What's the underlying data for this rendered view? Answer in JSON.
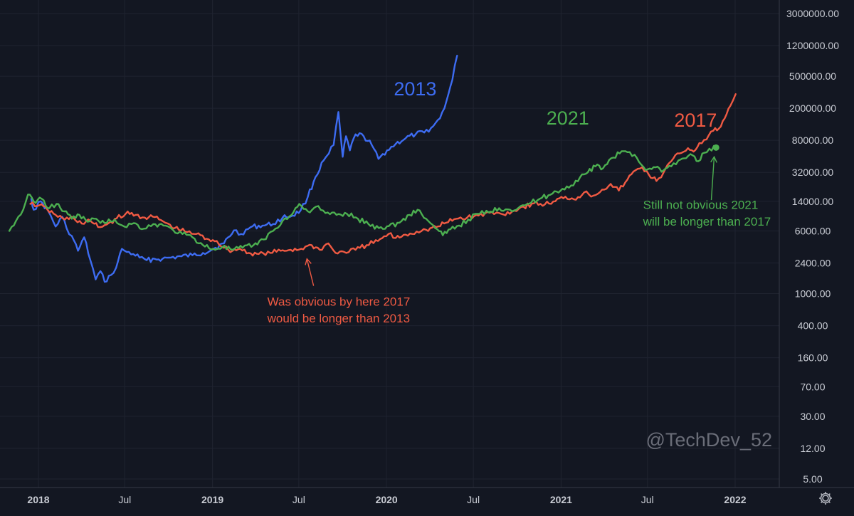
{
  "chart_data": {
    "type": "line",
    "title": "",
    "xlabel": "",
    "ylabel": "",
    "y_scale": "log",
    "ylim": [
      4,
      3500000
    ],
    "xlim": [
      "2017-11-01",
      "2022-03-15"
    ],
    "grid": true,
    "y_ticks": [
      3000000,
      1200000,
      500000,
      200000,
      80000,
      32000,
      14000,
      6000,
      2400,
      1000,
      400,
      160,
      70,
      30,
      12,
      5
    ],
    "y_tick_labels": [
      "3000000.00",
      "1200000.00",
      "500000.00",
      "200000.00",
      "80000.00",
      "32000.00",
      "14000.00",
      "6000.00",
      "2400.00",
      "1000.00",
      "400.00",
      "160.00",
      "70.00",
      "30.00",
      "12.00",
      "5.00"
    ],
    "x_ticks": [
      {
        "date": "2018-01-01",
        "label": "2018",
        "major": true
      },
      {
        "date": "2018-07-01",
        "label": "Jul",
        "major": false
      },
      {
        "date": "2019-01-01",
        "label": "2019",
        "major": true
      },
      {
        "date": "2019-07-01",
        "label": "Jul",
        "major": false
      },
      {
        "date": "2020-01-01",
        "label": "2020",
        "major": true
      },
      {
        "date": "2020-07-01",
        "label": "Jul",
        "major": false
      },
      {
        "date": "2021-01-01",
        "label": "2021",
        "major": true
      },
      {
        "date": "2021-07-01",
        "label": "Jul",
        "major": false
      },
      {
        "date": "2022-01-01",
        "label": "2022",
        "major": true
      }
    ],
    "series": [
      {
        "name": "2013",
        "color": "#3d6cf2",
        "label_date": "2020-03-01",
        "label_value": 290000,
        "points": [
          [
            "2017-12-17",
            15000
          ],
          [
            "2017-12-22",
            11000
          ],
          [
            "2018-01-06",
            14000
          ],
          [
            "2018-01-22",
            10500
          ],
          [
            "2018-02-06",
            6800
          ],
          [
            "2018-02-20",
            9000
          ],
          [
            "2018-03-01",
            6500
          ],
          [
            "2018-03-12",
            5200
          ],
          [
            "2018-03-25",
            3400
          ],
          [
            "2018-04-07",
            5000
          ],
          [
            "2018-04-20",
            2600
          ],
          [
            "2018-05-01",
            1500
          ],
          [
            "2018-05-11",
            1900
          ],
          [
            "2018-05-20",
            1400
          ],
          [
            "2018-06-02",
            1700
          ],
          [
            "2018-06-13",
            2100
          ],
          [
            "2018-06-25",
            3600
          ],
          [
            "2018-07-05",
            3300
          ],
          [
            "2018-07-19",
            3100
          ],
          [
            "2018-08-01",
            2800
          ],
          [
            "2018-08-16",
            2600
          ],
          [
            "2018-09-02",
            2700
          ],
          [
            "2018-09-18",
            2700
          ],
          [
            "2018-10-06",
            2800
          ],
          [
            "2018-10-28",
            2900
          ],
          [
            "2018-11-20",
            3000
          ],
          [
            "2018-12-12",
            3200
          ],
          [
            "2019-01-03",
            3600
          ],
          [
            "2019-01-25",
            4200
          ],
          [
            "2019-02-15",
            6100
          ],
          [
            "2019-03-02",
            5500
          ],
          [
            "2019-03-22",
            6700
          ],
          [
            "2019-04-16",
            7000
          ],
          [
            "2019-05-08",
            7300
          ],
          [
            "2019-05-28",
            8800
          ],
          [
            "2019-06-18",
            9300
          ],
          [
            "2019-07-05",
            10800
          ],
          [
            "2019-07-20",
            16000
          ],
          [
            "2019-08-05",
            28000
          ],
          [
            "2019-08-22",
            45000
          ],
          [
            "2019-09-02",
            55000
          ],
          [
            "2019-09-12",
            70000
          ],
          [
            "2019-09-22",
            180000
          ],
          [
            "2019-10-01",
            50000
          ],
          [
            "2019-10-08",
            90000
          ],
          [
            "2019-10-16",
            60000
          ],
          [
            "2019-10-28",
            95000
          ],
          [
            "2019-11-14",
            90000
          ],
          [
            "2019-12-01",
            70000
          ],
          [
            "2019-12-15",
            47000
          ],
          [
            "2020-01-02",
            60000
          ],
          [
            "2020-01-20",
            72000
          ],
          [
            "2020-02-10",
            85000
          ],
          [
            "2020-03-02",
            95000
          ],
          [
            "2020-03-20",
            100000
          ],
          [
            "2020-04-08",
            120000
          ],
          [
            "2020-04-22",
            150000
          ],
          [
            "2020-05-06",
            250000
          ],
          [
            "2020-05-18",
            450000
          ],
          [
            "2020-05-28",
            900000
          ]
        ]
      },
      {
        "name": "2017",
        "color": "#f05a43",
        "label_date": "2021-10-10",
        "label_value": 118000,
        "points": [
          [
            "2017-12-15",
            13000
          ],
          [
            "2018-01-03",
            12500
          ],
          [
            "2018-01-20",
            11000
          ],
          [
            "2018-02-06",
            9500
          ],
          [
            "2018-02-25",
            8300
          ],
          [
            "2018-03-15",
            8800
          ],
          [
            "2018-04-02",
            7400
          ],
          [
            "2018-04-20",
            8000
          ],
          [
            "2018-05-06",
            6700
          ],
          [
            "2018-05-24",
            7200
          ],
          [
            "2018-06-14",
            8600
          ],
          [
            "2018-07-03",
            9800
          ],
          [
            "2018-07-24",
            9500
          ],
          [
            "2018-08-12",
            8800
          ],
          [
            "2018-09-02",
            8900
          ],
          [
            "2018-09-24",
            7600
          ],
          [
            "2018-10-14",
            6500
          ],
          [
            "2018-11-04",
            5900
          ],
          [
            "2018-11-28",
            5500
          ],
          [
            "2018-12-20",
            4800
          ],
          [
            "2019-01-10",
            4500
          ],
          [
            "2019-01-25",
            3700
          ],
          [
            "2019-02-12",
            3400
          ],
          [
            "2019-02-28",
            3600
          ],
          [
            "2019-03-18",
            3200
          ],
          [
            "2019-04-08",
            3100
          ],
          [
            "2019-05-02",
            3200
          ],
          [
            "2019-05-24",
            3400
          ],
          [
            "2019-06-14",
            3500
          ],
          [
            "2019-07-06",
            3600
          ],
          [
            "2019-07-28",
            4000
          ],
          [
            "2019-08-14",
            3500
          ],
          [
            "2019-09-01",
            4200
          ],
          [
            "2019-09-16",
            3200
          ],
          [
            "2019-10-04",
            3300
          ],
          [
            "2019-10-28",
            3500
          ],
          [
            "2019-11-20",
            4000
          ],
          [
            "2019-12-14",
            4500
          ],
          [
            "2020-01-05",
            5500
          ],
          [
            "2020-01-20",
            4900
          ],
          [
            "2020-02-10",
            5400
          ],
          [
            "2020-03-04",
            5900
          ],
          [
            "2020-03-24",
            6200
          ],
          [
            "2020-04-14",
            6700
          ],
          [
            "2020-05-05",
            7600
          ],
          [
            "2020-05-26",
            8500
          ],
          [
            "2020-06-18",
            8800
          ],
          [
            "2020-07-12",
            9300
          ],
          [
            "2020-08-04",
            10100
          ],
          [
            "2020-08-28",
            9800
          ],
          [
            "2020-09-20",
            10400
          ],
          [
            "2020-10-14",
            12000
          ],
          [
            "2020-11-05",
            13200
          ],
          [
            "2020-11-28",
            12800
          ],
          [
            "2020-12-20",
            14000
          ],
          [
            "2021-01-10",
            16000
          ],
          [
            "2021-01-28",
            14800
          ],
          [
            "2021-02-18",
            18000
          ],
          [
            "2021-03-10",
            16500
          ],
          [
            "2021-03-28",
            19500
          ],
          [
            "2021-04-15",
            23000
          ],
          [
            "2021-05-02",
            19000
          ],
          [
            "2021-05-20",
            26000
          ],
          [
            "2021-06-06",
            34000
          ],
          [
            "2021-06-20",
            37000
          ],
          [
            "2021-07-04",
            30000
          ],
          [
            "2021-07-20",
            25000
          ],
          [
            "2021-08-04",
            32000
          ],
          [
            "2021-08-20",
            44000
          ],
          [
            "2021-09-06",
            55000
          ],
          [
            "2021-09-24",
            64000
          ],
          [
            "2021-10-06",
            58000
          ],
          [
            "2021-10-18",
            74000
          ],
          [
            "2021-11-02",
            82000
          ],
          [
            "2021-11-16",
            105000
          ],
          [
            "2021-11-28",
            112000
          ],
          [
            "2021-12-10",
            150000
          ],
          [
            "2021-12-22",
            215000
          ],
          [
            "2022-01-02",
            300000
          ]
        ]
      },
      {
        "name": "2021",
        "color": "#4caf50",
        "label_date": "2021-01-15",
        "label_value": 125000,
        "points": [
          [
            "2017-11-01",
            6000
          ],
          [
            "2017-11-15",
            8000
          ],
          [
            "2017-11-30",
            11000
          ],
          [
            "2017-12-10",
            17000
          ],
          [
            "2017-12-22",
            14000
          ],
          [
            "2018-01-08",
            15000
          ],
          [
            "2018-01-24",
            11500
          ],
          [
            "2018-02-08",
            13000
          ],
          [
            "2018-02-24",
            10500
          ],
          [
            "2018-03-12",
            8500
          ],
          [
            "2018-03-28",
            9500
          ],
          [
            "2018-04-14",
            7800
          ],
          [
            "2018-05-02",
            8500
          ],
          [
            "2018-05-20",
            7500
          ],
          [
            "2018-06-10",
            8300
          ],
          [
            "2018-06-30",
            6800
          ],
          [
            "2018-07-20",
            7500
          ],
          [
            "2018-08-10",
            6400
          ],
          [
            "2018-08-30",
            7300
          ],
          [
            "2018-09-20",
            7000
          ],
          [
            "2018-10-10",
            6200
          ],
          [
            "2018-10-30",
            5500
          ],
          [
            "2018-11-20",
            5000
          ],
          [
            "2018-12-12",
            4000
          ],
          [
            "2019-01-02",
            3600
          ],
          [
            "2019-01-22",
            3800
          ],
          [
            "2019-02-12",
            3500
          ],
          [
            "2019-03-05",
            3700
          ],
          [
            "2019-03-28",
            4000
          ],
          [
            "2019-04-18",
            4700
          ],
          [
            "2019-05-08",
            6000
          ],
          [
            "2019-05-28",
            8000
          ],
          [
            "2019-06-16",
            9500
          ],
          [
            "2019-07-02",
            13000
          ],
          [
            "2019-07-20",
            10500
          ],
          [
            "2019-08-06",
            12000
          ],
          [
            "2019-08-26",
            10000
          ],
          [
            "2019-09-18",
            9500
          ],
          [
            "2019-10-10",
            9800
          ],
          [
            "2019-11-02",
            8500
          ],
          [
            "2019-11-24",
            7300
          ],
          [
            "2019-12-16",
            6500
          ],
          [
            "2020-01-06",
            6900
          ],
          [
            "2020-01-28",
            7600
          ],
          [
            "2020-02-18",
            9500
          ],
          [
            "2020-03-06",
            11000
          ],
          [
            "2020-03-24",
            8500
          ],
          [
            "2020-04-12",
            6500
          ],
          [
            "2020-04-28",
            5300
          ],
          [
            "2020-05-14",
            6300
          ],
          [
            "2020-06-01",
            7000
          ],
          [
            "2020-06-20",
            8300
          ],
          [
            "2020-07-10",
            9800
          ],
          [
            "2020-08-02",
            10200
          ],
          [
            "2020-08-24",
            11500
          ],
          [
            "2020-09-16",
            11000
          ],
          [
            "2020-10-08",
            12200
          ],
          [
            "2020-10-30",
            13400
          ],
          [
            "2020-11-22",
            15500
          ],
          [
            "2020-12-14",
            17500
          ],
          [
            "2021-01-04",
            20000
          ],
          [
            "2021-01-22",
            22000
          ],
          [
            "2021-02-10",
            28000
          ],
          [
            "2021-02-26",
            32000
          ],
          [
            "2021-03-14",
            38000
          ],
          [
            "2021-03-30",
            36000
          ],
          [
            "2021-04-16",
            48000
          ],
          [
            "2021-05-04",
            55000
          ],
          [
            "2021-05-20",
            57000
          ],
          [
            "2021-06-04",
            53000
          ],
          [
            "2021-06-18",
            40000
          ],
          [
            "2021-07-02",
            35000
          ],
          [
            "2021-07-18",
            37000
          ],
          [
            "2021-08-04",
            34000
          ],
          [
            "2021-08-20",
            38000
          ],
          [
            "2021-09-04",
            45000
          ],
          [
            "2021-09-20",
            48000
          ],
          [
            "2021-10-04",
            52000
          ],
          [
            "2021-10-16",
            44000
          ],
          [
            "2021-10-28",
            56000
          ],
          [
            "2021-11-08",
            63000
          ],
          [
            "2021-11-22",
            65000
          ]
        ]
      }
    ],
    "annotations": [
      {
        "text": "Was obvious by here 2017",
        "color": "#f05a43",
        "date": "2019-04-26",
        "value": 710
      },
      {
        "text": "would be longer than 2013",
        "color": "#f05a43",
        "date": "2019-04-26",
        "value": 440
      },
      {
        "text": "Still not obvious 2021",
        "color": "#4caf50",
        "date": "2021-06-22",
        "value": 11300
      },
      {
        "text": "will be longer than 2017",
        "color": "#4caf50",
        "date": "2021-06-22",
        "value": 7000
      }
    ],
    "arrows": [
      {
        "color": "#f05a43",
        "from_date": "2019-08-01",
        "from_value": 1250,
        "to_date": "2019-07-18",
        "to_value": 2700
      },
      {
        "color": "#4caf50",
        "from_date": "2021-11-12",
        "from_value": 14500,
        "to_date": "2021-11-18",
        "to_value": 50000
      }
    ],
    "endpoint_marker": {
      "series": "2021",
      "date": "2021-11-22",
      "value": 65000,
      "color": "#4caf50"
    },
    "watermark": "@TechDev_52"
  }
}
